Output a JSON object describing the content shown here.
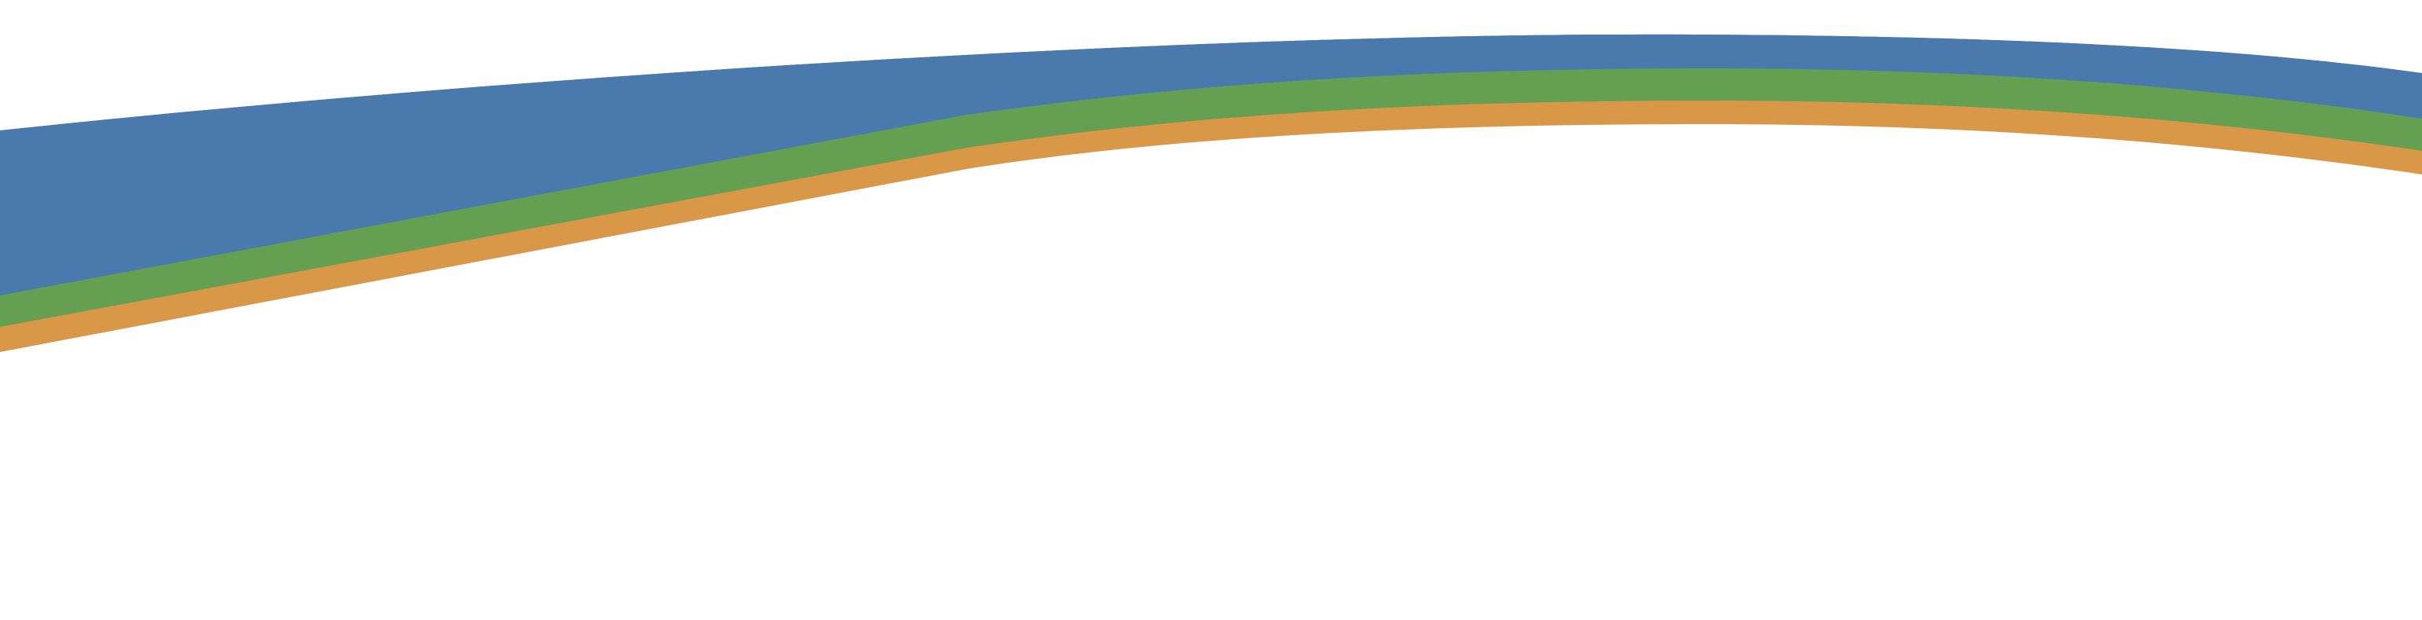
{
  "colors": {
    "background": "#ffffff",
    "band_blue": "#4a7aad",
    "band_green": "#65a052",
    "band_orange": "#d99848"
  },
  "bands": [
    {
      "name": "blue-band",
      "color": "#4a7aad"
    },
    {
      "name": "green-band",
      "color": "#65a052"
    },
    {
      "name": "orange-band",
      "color": "#d99848"
    }
  ]
}
